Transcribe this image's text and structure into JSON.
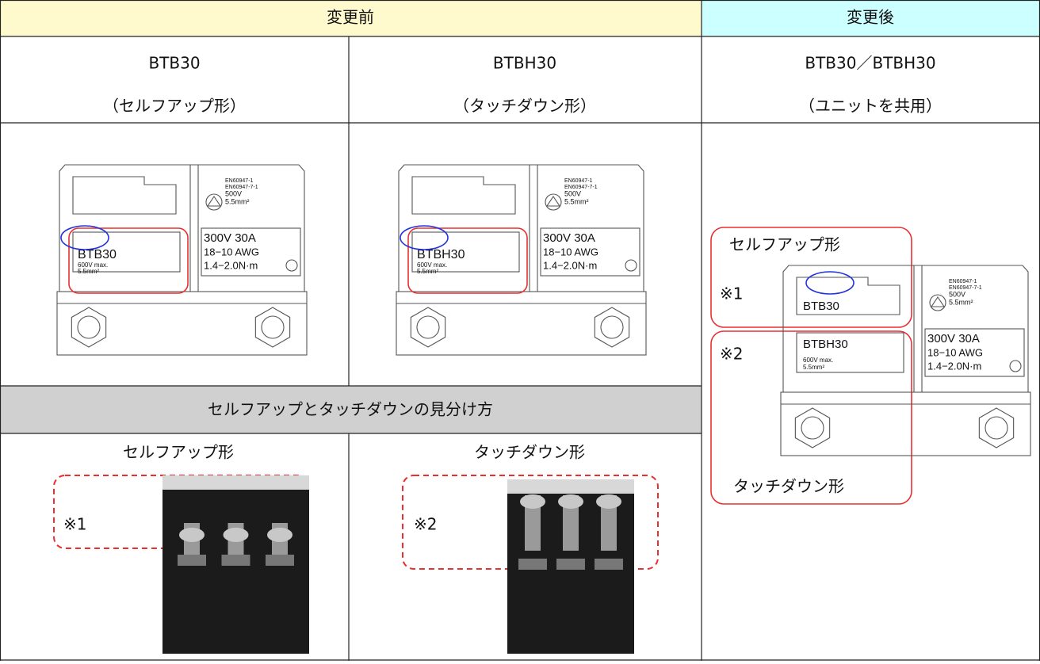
{
  "header": {
    "before": "変更前",
    "after": "変更後"
  },
  "models": [
    {
      "name": "BTB30",
      "kind": "（セルフアップ形）"
    },
    {
      "name": "BTBH30",
      "kind": "（タッチダウン形）"
    },
    {
      "name": "BTB30／BTBH30",
      "kind": "（ユニットを共用）"
    }
  ],
  "drawing_text": {
    "standard_1": "EN60947-1",
    "standard_2": "EN60947-7-1",
    "rating": "500V",
    "wire": "5.5mm²",
    "ul_rating": "300V 30A",
    "awg": "18−10 AWG",
    "torque": "1.4−2.0N·m",
    "max_voltage": "600V max."
  },
  "identification": {
    "title": "セルフアップとタッチダウンの見分け方",
    "self_up": "セルフアップ形",
    "touch_down": "タッチダウン形",
    "mark_1": "※1",
    "mark_2": "※2"
  },
  "shared_unit": {
    "self_up": "セルフアップ形",
    "touch_down": "タッチダウン形",
    "mark_1": "※1",
    "mark_2": "※2",
    "upper_model": "BTB30",
    "lower_model": "BTBH30"
  }
}
